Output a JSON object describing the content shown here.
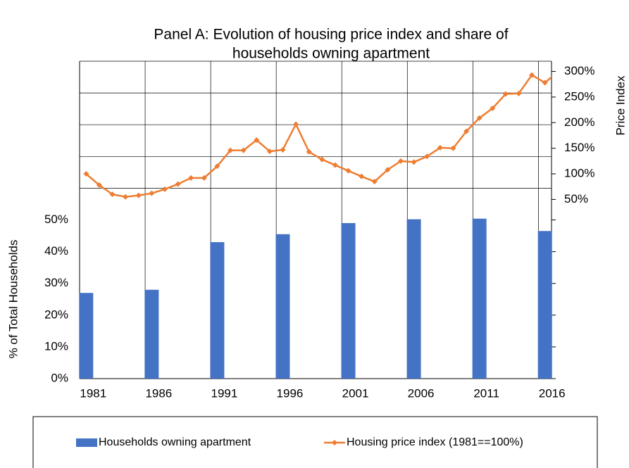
{
  "chart_data": {
    "type": "bar-line",
    "title": [
      "Panel A: Evolution of housing price index and share of",
      "households owning apartment"
    ],
    "ylabel": "% of Total Households",
    "y2label": "Price Index",
    "xlim": [
      1980.5,
      2016.5
    ],
    "xticks": [
      1981,
      1986,
      1991,
      1996,
      2001,
      2006,
      2011,
      2016
    ],
    "ylim": [
      0,
      100
    ],
    "yticks": [
      {
        "value": 0,
        "label": "0%"
      },
      {
        "value": 10,
        "label": "10%"
      },
      {
        "value": 20,
        "label": "20%"
      },
      {
        "value": 30,
        "label": "30%"
      },
      {
        "value": 40,
        "label": "40%"
      },
      {
        "value": 50,
        "label": "50%"
      }
    ],
    "y2lim": [
      -300,
      320
    ],
    "y2ticks": [
      {
        "value": 50,
        "label": "50%"
      },
      {
        "value": 100,
        "label": "100%"
      },
      {
        "value": 150,
        "label": "150%"
      },
      {
        "value": 200,
        "label": "200%"
      },
      {
        "value": 250,
        "label": "250%"
      },
      {
        "value": 300,
        "label": "300%"
      }
    ],
    "grid": true,
    "legend": "bottom",
    "series": [
      {
        "name": "Households owning apartment",
        "type": "bar",
        "color": "#4472c4",
        "x": [
          1981,
          1986,
          1991,
          1996,
          2001,
          2006,
          2011,
          2016
        ],
        "values": [
          27,
          28,
          43,
          45.5,
          49,
          50.2,
          50.4,
          46.5
        ]
      },
      {
        "name": "Housing price index (1981==100%)",
        "type": "line",
        "axis": "y2",
        "color": "#ed7d31",
        "x": [
          1981,
          1982,
          1983,
          1984,
          1985,
          1986,
          1987,
          1988,
          1989,
          1990,
          1991,
          1992,
          1993,
          1994,
          1995,
          1996,
          1997,
          1998,
          1999,
          2000,
          2001,
          2002,
          2003,
          2004,
          2005,
          2006,
          2007,
          2008,
          2009,
          2010,
          2011,
          2012,
          2013,
          2014,
          2015,
          2016,
          2017
        ],
        "values": [
          100,
          78,
          60,
          55,
          58,
          62,
          70,
          80,
          92,
          92,
          115,
          146,
          146,
          166,
          144,
          147,
          197,
          143,
          128,
          117,
          106,
          95,
          85,
          108,
          125,
          123,
          134,
          151,
          150,
          183,
          209,
          228,
          256,
          257,
          293,
          278,
          300
        ]
      }
    ]
  }
}
